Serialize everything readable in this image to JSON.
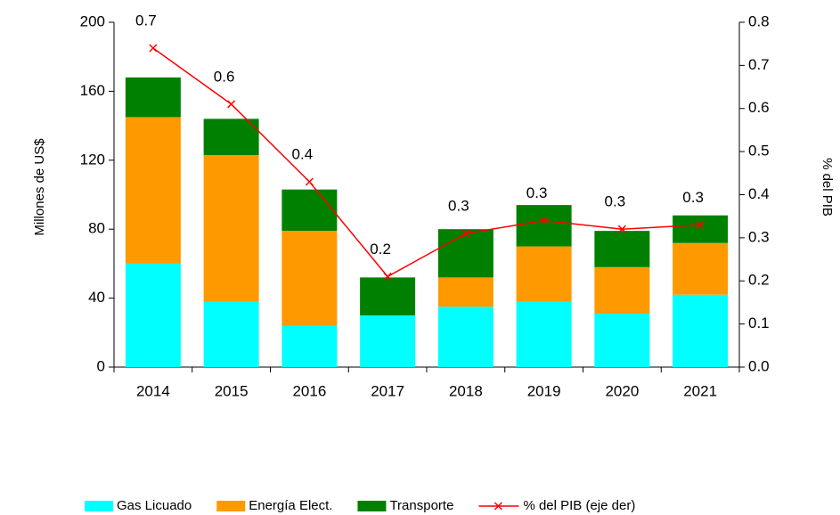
{
  "chart_data": {
    "type": "bar",
    "stacked": true,
    "categories": [
      "2014",
      "2015",
      "2016",
      "2017",
      "2018",
      "2019",
      "2020",
      "2021"
    ],
    "ylabel": "Millones de US$",
    "y2label": "% del PIB",
    "ylim": [
      0,
      200
    ],
    "yticks": [
      0,
      40,
      80,
      120,
      160,
      200
    ],
    "y2lim": [
      0,
      0.8
    ],
    "y2ticks": [
      {
        "value": 0,
        "label": "0.0"
      },
      0.1,
      0.2,
      0.3,
      0.4,
      0.5,
      0.6,
      0.7,
      0.8
    ],
    "legend": "bottom",
    "series": [
      {
        "name": "Gas Licuado",
        "color": "#00ffff",
        "values": [
          60,
          38,
          24,
          30,
          35,
          38,
          31,
          42
        ]
      },
      {
        "name": "Energía Elect.",
        "color": "#ff9900",
        "values": [
          85,
          85,
          55,
          0,
          17,
          32,
          27,
          30
        ]
      },
      {
        "name": "Transporte",
        "color": "#008000",
        "values": [
          23,
          21,
          24,
          22,
          28,
          24,
          21,
          16
        ]
      },
      {
        "name": "% del PIB (eje der)",
        "color": "#ff0000",
        "type": "line",
        "axis": "y2",
        "values": [
          0.74,
          0.61,
          0.43,
          0.21,
          0.31,
          0.34,
          0.32,
          0.33
        ],
        "value_labels": [
          "0.7",
          "0.6",
          "0.4",
          "0.2",
          "0.3",
          "0.3",
          "0.3",
          "0.3"
        ]
      }
    ]
  }
}
